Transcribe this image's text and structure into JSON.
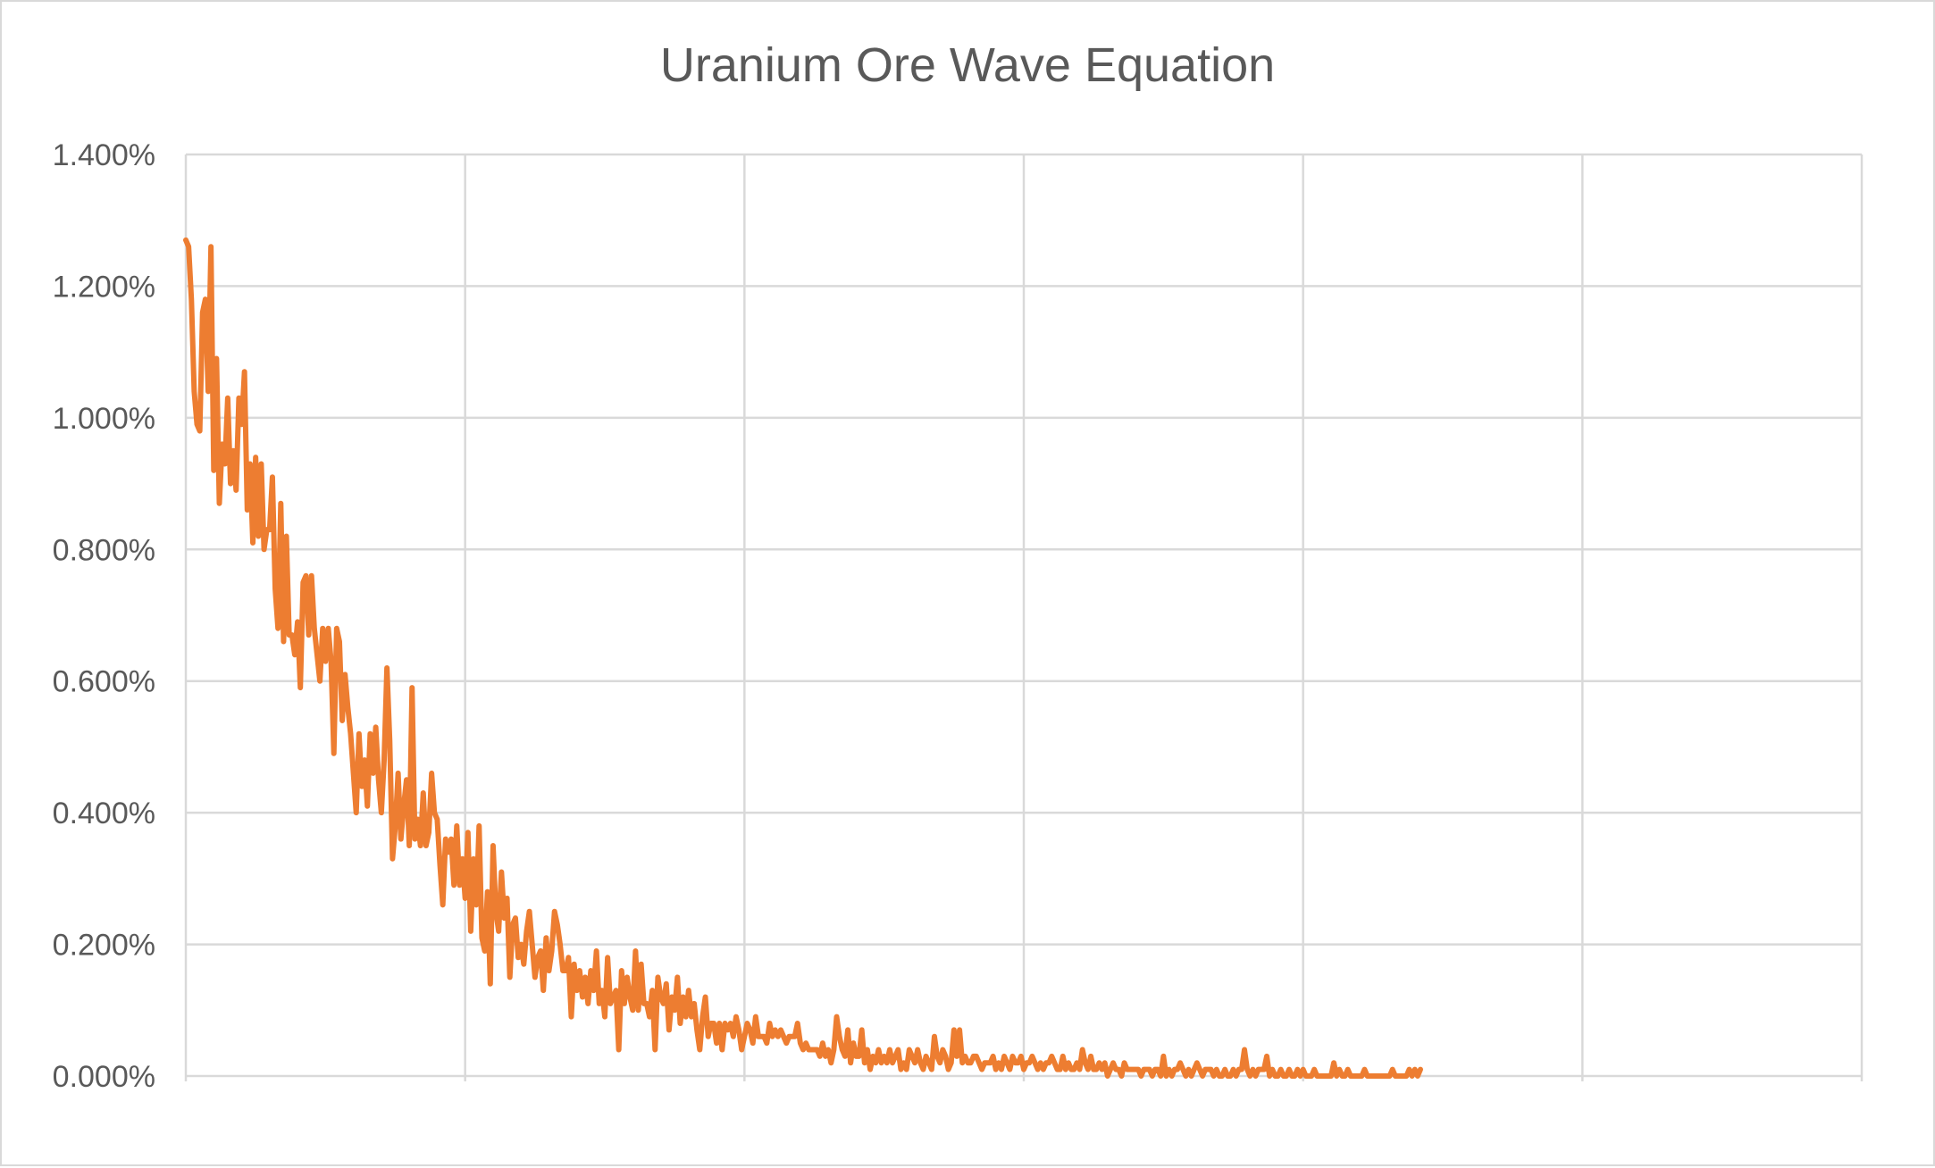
{
  "chart_data": {
    "type": "line",
    "title": "Uranium Ore Wave Equation",
    "xlabel": "",
    "ylabel": "",
    "ylim": [
      0,
      0.014
    ],
    "yticks": [
      "0.000%",
      "0.200%",
      "0.400%",
      "0.600%",
      "0.800%",
      "1.000%",
      "1.200%",
      "1.400%"
    ],
    "xlim": [
      0,
      600
    ],
    "x_gridlines": 6,
    "grid": true,
    "legend": "none",
    "series": [
      {
        "color": "#ED7D31",
        "x_start": 0,
        "x_step": 1,
        "values": [
          0.0127,
          0.0126,
          0.0118,
          0.0104,
          0.0099,
          0.0098,
          0.0116,
          0.0118,
          0.0104,
          0.0126,
          0.0092,
          0.0109,
          0.0087,
          0.0096,
          0.0093,
          0.0103,
          0.009,
          0.0095,
          0.0089,
          0.0103,
          0.0099,
          0.0107,
          0.0086,
          0.0093,
          0.0081,
          0.0094,
          0.0082,
          0.0093,
          0.008,
          0.0083,
          0.0083,
          0.0091,
          0.0074,
          0.0068,
          0.0087,
          0.0066,
          0.0082,
          0.0067,
          0.0067,
          0.0064,
          0.0069,
          0.0059,
          0.0075,
          0.0076,
          0.0067,
          0.0076,
          0.0068,
          0.0064,
          0.006,
          0.0068,
          0.0063,
          0.0068,
          0.0063,
          0.0049,
          0.0068,
          0.0066,
          0.0054,
          0.0061,
          0.0056,
          0.0052,
          0.0046,
          0.004,
          0.0052,
          0.0044,
          0.0048,
          0.0041,
          0.0052,
          0.0046,
          0.0053,
          0.0045,
          0.004,
          0.0048,
          0.0062,
          0.0051,
          0.0033,
          0.0038,
          0.0046,
          0.0036,
          0.0041,
          0.0045,
          0.0035,
          0.0059,
          0.0036,
          0.0039,
          0.0035,
          0.0043,
          0.0035,
          0.0037,
          0.0046,
          0.004,
          0.0039,
          0.0032,
          0.0026,
          0.0036,
          0.0034,
          0.0036,
          0.0029,
          0.0038,
          0.0029,
          0.0033,
          0.0027,
          0.0037,
          0.0022,
          0.0033,
          0.0026,
          0.0038,
          0.0021,
          0.0019,
          0.0028,
          0.0014,
          0.0035,
          0.0025,
          0.0022,
          0.0031,
          0.0024,
          0.0027,
          0.0015,
          0.0023,
          0.0024,
          0.0018,
          0.002,
          0.0017,
          0.0022,
          0.0025,
          0.002,
          0.0015,
          0.0018,
          0.0019,
          0.0013,
          0.0021,
          0.0016,
          0.0019,
          0.0025,
          0.0023,
          0.002,
          0.0016,
          0.0016,
          0.0018,
          0.0009,
          0.0017,
          0.0013,
          0.0016,
          0.0012,
          0.0015,
          0.0011,
          0.0016,
          0.0013,
          0.0019,
          0.0011,
          0.0013,
          0.0009,
          0.0018,
          0.0011,
          0.0012,
          0.0013,
          0.0004,
          0.0016,
          0.0011,
          0.0015,
          0.0012,
          0.001,
          0.0019,
          0.001,
          0.0017,
          0.0011,
          0.0011,
          0.0009,
          0.0013,
          0.0004,
          0.0015,
          0.0012,
          0.0011,
          0.0014,
          0.0007,
          0.0012,
          0.001,
          0.0015,
          0.0008,
          0.0012,
          0.0009,
          0.0013,
          0.0009,
          0.0011,
          0.0007,
          0.0004,
          0.0009,
          0.0012,
          0.0006,
          0.0008,
          0.0008,
          0.0005,
          0.0008,
          0.0004,
          0.0008,
          0.0007,
          0.0008,
          0.0006,
          0.0009,
          0.0007,
          0.0004,
          0.0006,
          0.0008,
          0.0007,
          0.0005,
          0.0009,
          0.0006,
          0.0006,
          0.0006,
          0.0005,
          0.0008,
          0.0006,
          0.0007,
          0.0006,
          0.0007,
          0.0006,
          0.0005,
          0.0006,
          0.0006,
          0.0006,
          0.0008,
          0.0005,
          0.0004,
          0.0005,
          0.0004,
          0.0004,
          0.0004,
          0.0004,
          0.0003,
          0.0005,
          0.0003,
          0.0004,
          0.0002,
          0.0004,
          0.0009,
          0.0006,
          0.0004,
          0.0003,
          0.0007,
          0.0002,
          0.0005,
          0.0003,
          0.0003,
          0.0007,
          0.0002,
          0.0004,
          0.0001,
          0.0003,
          0.0002,
          0.0004,
          0.0002,
          0.0003,
          0.0002,
          0.0004,
          0.0002,
          0.0003,
          0.0004,
          0.0001,
          0.0002,
          0.0001,
          0.0004,
          0.0003,
          0.0002,
          0.0004,
          0.0002,
          0.0001,
          0.0003,
          0.0002,
          0.0001,
          0.0006,
          0.0003,
          0.0002,
          0.0004,
          0.0003,
          0.0001,
          0.0002,
          0.0007,
          0.0003,
          0.0007,
          0.0002,
          0.0003,
          0.0002,
          0.0002,
          0.0003,
          0.0003,
          0.0002,
          0.0001,
          0.0002,
          0.0002,
          0.0002,
          0.0003,
          0.0001,
          0.0002,
          0.0001,
          0.0003,
          0.0002,
          0.0001,
          0.0003,
          0.0002,
          0.0002,
          0.0003,
          0.0001,
          0.0002,
          0.0002,
          0.0003,
          0.0002,
          0.0001,
          0.0002,
          0.0001,
          0.0002,
          0.0002,
          0.0003,
          0.0002,
          0.0001,
          0.0001,
          0.0003,
          0.0001,
          0.0002,
          0.0001,
          0.0001,
          0.0002,
          0.0001,
          0.0004,
          0.0002,
          0.0001,
          0.0003,
          0.0001,
          0.0001,
          0.0002,
          0.0001,
          0.0002,
          0.0,
          0.0001,
          0.0002,
          0.0001,
          0.0001,
          0.0,
          0.0002,
          0.0001,
          0.0001,
          0.0001,
          0.0001,
          0.0001,
          0.0,
          0.0001,
          0.0001,
          0.0001,
          0.0,
          0.0001,
          0.0001,
          0.0,
          0.0003,
          0.0,
          0.0001,
          0.0,
          0.0001,
          0.0001,
          0.0002,
          0.0001,
          0.0,
          0.0001,
          0.0,
          0.0001,
          0.0002,
          0.0001,
          0.0,
          0.0001,
          0.0001,
          0.0001,
          0.0,
          0.0001,
          0.0,
          0.0,
          0.0001,
          0.0,
          0.0,
          0.0001,
          0.0,
          0.0001,
          0.0001,
          0.0004,
          0.0001,
          0.0,
          0.0001,
          0.0,
          0.0001,
          0.0001,
          0.0001,
          0.0003,
          0.0,
          0.0001,
          0.0,
          0.0,
          0.0001,
          0.0,
          0.0,
          0.0001,
          0.0,
          0.0,
          0.0001,
          0.0,
          0.0001,
          0.0,
          0.0,
          0.0,
          0.0001,
          0.0,
          0.0,
          0.0,
          0.0,
          0.0,
          0.0,
          0.0002,
          0.0,
          0.0001,
          0.0,
          0.0,
          0.0001,
          0.0,
          0.0,
          0.0,
          0.0,
          0.0,
          0.0001,
          0.0,
          0.0,
          0.0,
          0.0,
          0.0,
          0.0,
          0.0,
          0.0,
          0.0,
          0.0001,
          0.0,
          0.0,
          0.0,
          0.0,
          0.0,
          0.0001,
          0.0,
          0.0001,
          0.0,
          0.0001
        ]
      }
    ]
  }
}
